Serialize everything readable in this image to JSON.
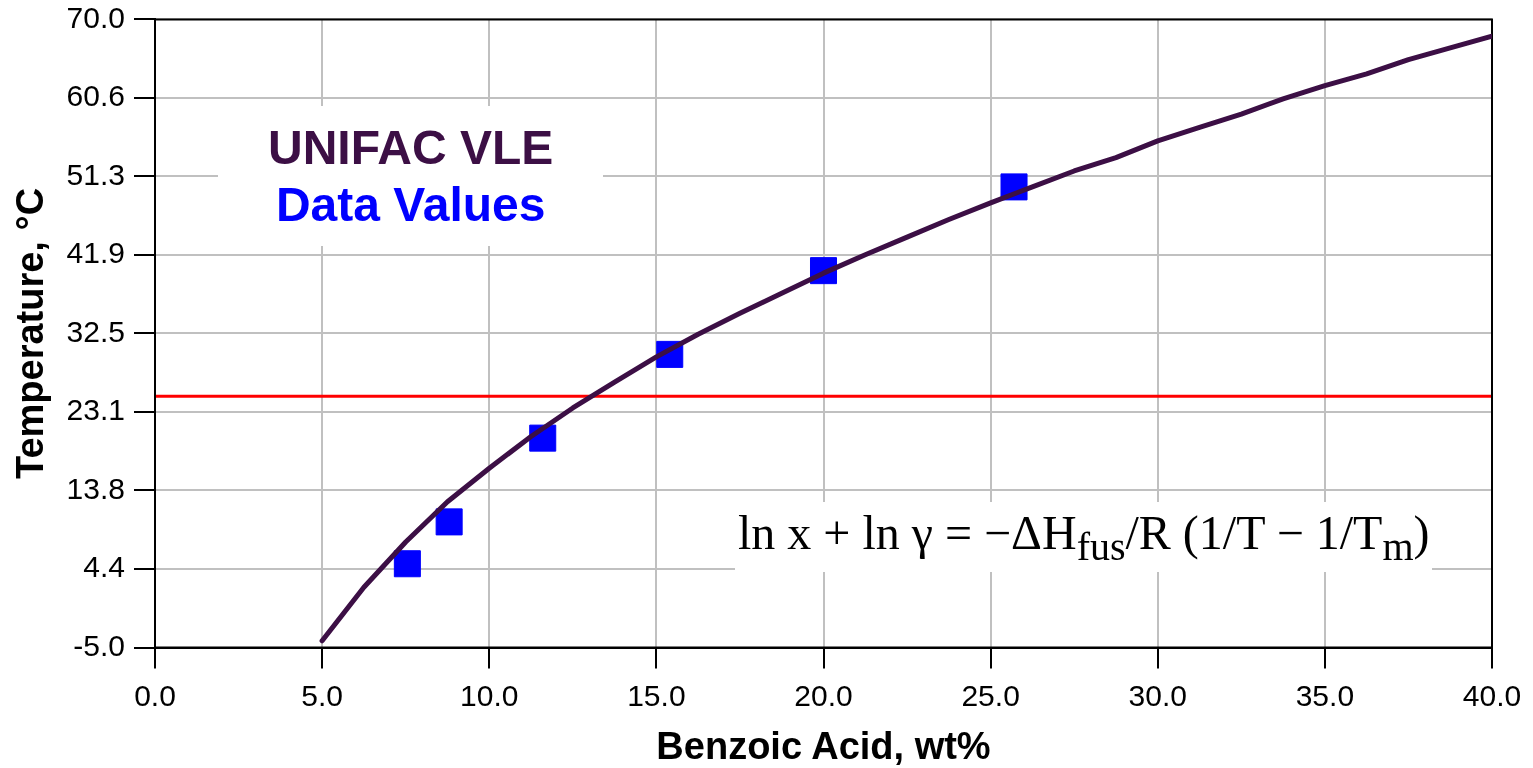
{
  "chart_data": {
    "type": "line",
    "xlabel": "Benzoic Acid, wt%",
    "ylabel": "Temperature, °C",
    "xlim": [
      0,
      40
    ],
    "xticks": [
      {
        "value": 0,
        "label": "0.0"
      },
      {
        "value": 5,
        "label": "5.0"
      },
      {
        "value": 10,
        "label": "10.0"
      },
      {
        "value": 15,
        "label": "15.0"
      },
      {
        "value": 20,
        "label": "20.0"
      },
      {
        "value": 25,
        "label": "25.0"
      },
      {
        "value": 30,
        "label": "30.0"
      },
      {
        "value": 35,
        "label": "35.0"
      },
      {
        "value": 40,
        "label": "40.0"
      }
    ],
    "ylim": [
      -5,
      70
    ],
    "yticks": [
      {
        "value": -5,
        "label": "-5.0"
      },
      {
        "value": 4.375,
        "label": "4.4"
      },
      {
        "value": 13.75,
        "label": "13.8"
      },
      {
        "value": 23.125,
        "label": "23.1"
      },
      {
        "value": 32.5,
        "label": "32.5"
      },
      {
        "value": 41.875,
        "label": "41.9"
      },
      {
        "value": 51.25,
        "label": "51.3"
      },
      {
        "value": 60.625,
        "label": "60.6"
      },
      {
        "value": 70,
        "label": "70.0"
      }
    ],
    "grid": true,
    "legend": "top left",
    "series": [
      {
        "name": "UNIFAC VLE",
        "color": "#3c0f45",
        "x": [
          5,
          6.25,
          7.5,
          8.75,
          10,
          11.25,
          12.5,
          13.75,
          15,
          16.25,
          17.5,
          18.75,
          20,
          21.25,
          22.5,
          23.75,
          25,
          26.25,
          27.5,
          28.75,
          30,
          31.25,
          32.5,
          33.75,
          35,
          36.25,
          37.5,
          38.75,
          40
        ],
        "values": [
          -4.2,
          2.2,
          7.6,
          12.4,
          16.4,
          20.2,
          23.6,
          26.7,
          29.7,
          32.4,
          34.9,
          37.3,
          39.7,
          41.9,
          44.0,
          46.1,
          48.1,
          50.0,
          51.9,
          53.5,
          55.5,
          57.1,
          58.7,
          60.5,
          62.1,
          63.5,
          65.2,
          66.6,
          68.0
        ]
      },
      {
        "name": "Data Values",
        "type": "scatter",
        "color": "#0000ff",
        "marker": "square",
        "x": [
          7.55,
          8.8,
          11.6,
          15.4,
          20.0,
          25.7
        ],
        "values": [
          5,
          10,
          20,
          30,
          40,
          50
        ]
      }
    ],
    "ref_lines": [
      {
        "axis": "y",
        "value": 25,
        "color": "#ff0000"
      }
    ],
    "annotations": [
      "ln x + ln γ = −ΔH$_{fus}$/R (1/T − 1/T$_{m}$)"
    ]
  }
}
